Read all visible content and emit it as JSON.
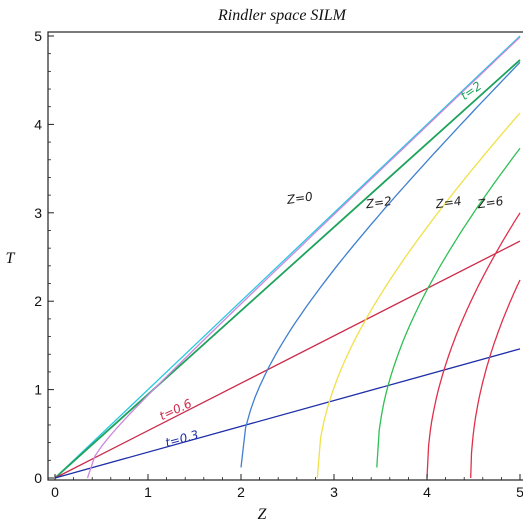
{
  "chart_data": {
    "type": "line",
    "title": "Rindler space SILM",
    "xlabel": "Z",
    "ylabel": "T",
    "xlim": [
      0,
      5
    ],
    "ylim": [
      0,
      5
    ],
    "x_ticks": [
      "0",
      "1",
      "2",
      "3",
      "4",
      "5"
    ],
    "y_ticks": [
      "0",
      "1",
      "2",
      "3",
      "4",
      "5"
    ],
    "grid": false,
    "colors": {
      "light_cone": "#27c8e0",
      "t2": "#1ea35c",
      "t06": "#cc2a4a",
      "t03": "#1e2ea8",
      "z_offset_0": "#cc88dd",
      "z_offset_2": "#3f7fd0",
      "z_offset_4": "#f0e04a",
      "z_offset_6": "#2fbf55",
      "z_offset_8": "#e0304a"
    },
    "series": [
      {
        "key": "light_cone",
        "kind": "line",
        "x": [
          0,
          5
        ],
        "y": [
          0,
          5
        ]
      },
      {
        "key": "t2",
        "kind": "line",
        "x": [
          0,
          5
        ],
        "y": [
          0,
          4.73
        ]
      },
      {
        "key": "t06",
        "kind": "line",
        "x": [
          0,
          5
        ],
        "y": [
          0,
          2.68
        ]
      },
      {
        "key": "t03",
        "kind": "line",
        "x": [
          0,
          5
        ],
        "y": [
          0,
          1.46
        ]
      },
      {
        "key": "z_offset_0",
        "kind": "hyperbola",
        "z0": 0.35,
        "x": [
          0.35,
          1,
          2,
          3,
          4,
          5
        ],
        "y": [
          0,
          0.94,
          1.97,
          2.98,
          3.98,
          4.99
        ]
      },
      {
        "key": "z_offset_2",
        "kind": "hyperbola",
        "z0": 2.0,
        "x": [
          2.0,
          2.5,
          3,
          4,
          5
        ],
        "y": [
          0.12,
          1.5,
          2.24,
          3.46,
          4.58
        ]
      },
      {
        "key": "z_offset_4",
        "kind": "hyperbola",
        "z0": 2.82,
        "x": [
          2.82,
          3,
          3.5,
          4,
          4.5,
          5
        ],
        "y": [
          0,
          1.04,
          2.07,
          2.84,
          3.51,
          4.13
        ]
      },
      {
        "key": "z_offset_6",
        "kind": "hyperbola",
        "z0": 3.46,
        "x": [
          3.46,
          4,
          4.5,
          5
        ],
        "y": [
          0.12,
          2.01,
          2.87,
          3.61
        ]
      },
      {
        "key": "z_offset_8",
        "kind": "hyperbola",
        "z0": 4.0,
        "x": [
          4.0,
          4.5,
          5
        ],
        "y": [
          0,
          2.06,
          3.0
        ]
      },
      {
        "key": "z_offset_10",
        "kind": "hyperbola",
        "z0": 4.47,
        "x": [
          4.47,
          4.75,
          5
        ],
        "y": [
          0,
          1.6,
          2.24
        ]
      }
    ],
    "annotations": [
      {
        "text": "t=2",
        "x": 4.4,
        "y": 4.27,
        "color": "#1ea35c",
        "rotate": -35
      },
      {
        "text": "Z=0",
        "x": 2.5,
        "y": 3.1,
        "color": "#222222",
        "rotate": -8
      },
      {
        "text": "Z=2",
        "x": 3.35,
        "y": 3.05,
        "color": "#222222",
        "rotate": -8
      },
      {
        "text": "Z=4",
        "x": 4.1,
        "y": 3.05,
        "color": "#222222",
        "rotate": -8
      },
      {
        "text": "Z=6",
        "x": 4.55,
        "y": 3.05,
        "color": "#222222",
        "rotate": -8
      },
      {
        "text": "t=0.6",
        "x": 1.15,
        "y": 0.65,
        "color": "#cc2a4a",
        "rotate": -25
      },
      {
        "text": "t=0.3",
        "x": 1.2,
        "y": 0.35,
        "color": "#1e2ea8",
        "rotate": -15
      }
    ]
  }
}
